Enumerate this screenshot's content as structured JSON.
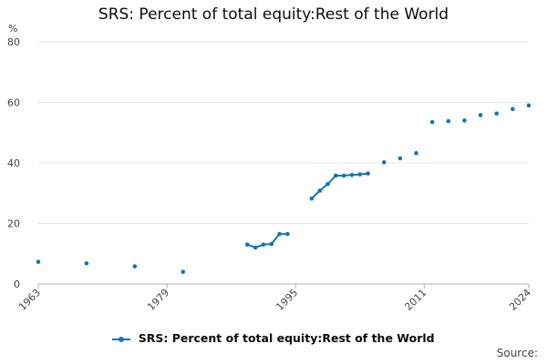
{
  "colors": {
    "series": "#1276b5",
    "grid": "#e6e6e6",
    "axis": "#b0b0b0",
    "text": "#444444"
  },
  "source_label": "Source:",
  "chart_data": {
    "type": "line",
    "title": "SRS: Percent of total equity:Rest of the World",
    "unit": "%",
    "xlim": [
      1963,
      2024
    ],
    "ylim": [
      0,
      80
    ],
    "y_ticks": [
      0,
      20,
      40,
      60,
      80
    ],
    "x_tick_labels": [
      "1963",
      "1979",
      "1995",
      "2011",
      "2024"
    ],
    "grid": "horizontal",
    "legend": "bottom-center",
    "series": [
      {
        "name": "SRS: Percent of total equity:Rest of the World",
        "points": [
          [
            1963,
            7.3
          ],
          [
            1969,
            6.8
          ],
          [
            1975,
            5.8
          ],
          [
            1981,
            4.0
          ],
          [
            1989,
            13.0
          ],
          [
            1990,
            12.0
          ],
          [
            1991,
            13.0
          ],
          [
            1992,
            13.2
          ],
          [
            1993,
            16.5
          ],
          [
            1994,
            16.5
          ],
          [
            1997,
            28.2
          ],
          [
            1998,
            30.8
          ],
          [
            1999,
            33.0
          ],
          [
            2000,
            35.8
          ],
          [
            2001,
            35.8
          ],
          [
            2002,
            36.0
          ],
          [
            2003,
            36.2
          ],
          [
            2004,
            36.5
          ],
          [
            2006,
            40.2
          ],
          [
            2008,
            41.5
          ],
          [
            2010,
            43.2
          ],
          [
            2012,
            53.5
          ],
          [
            2014,
            53.8
          ],
          [
            2016,
            54.0
          ],
          [
            2018,
            55.8
          ],
          [
            2020,
            56.3
          ],
          [
            2022,
            57.8
          ],
          [
            2024,
            59.0
          ]
        ]
      }
    ]
  }
}
